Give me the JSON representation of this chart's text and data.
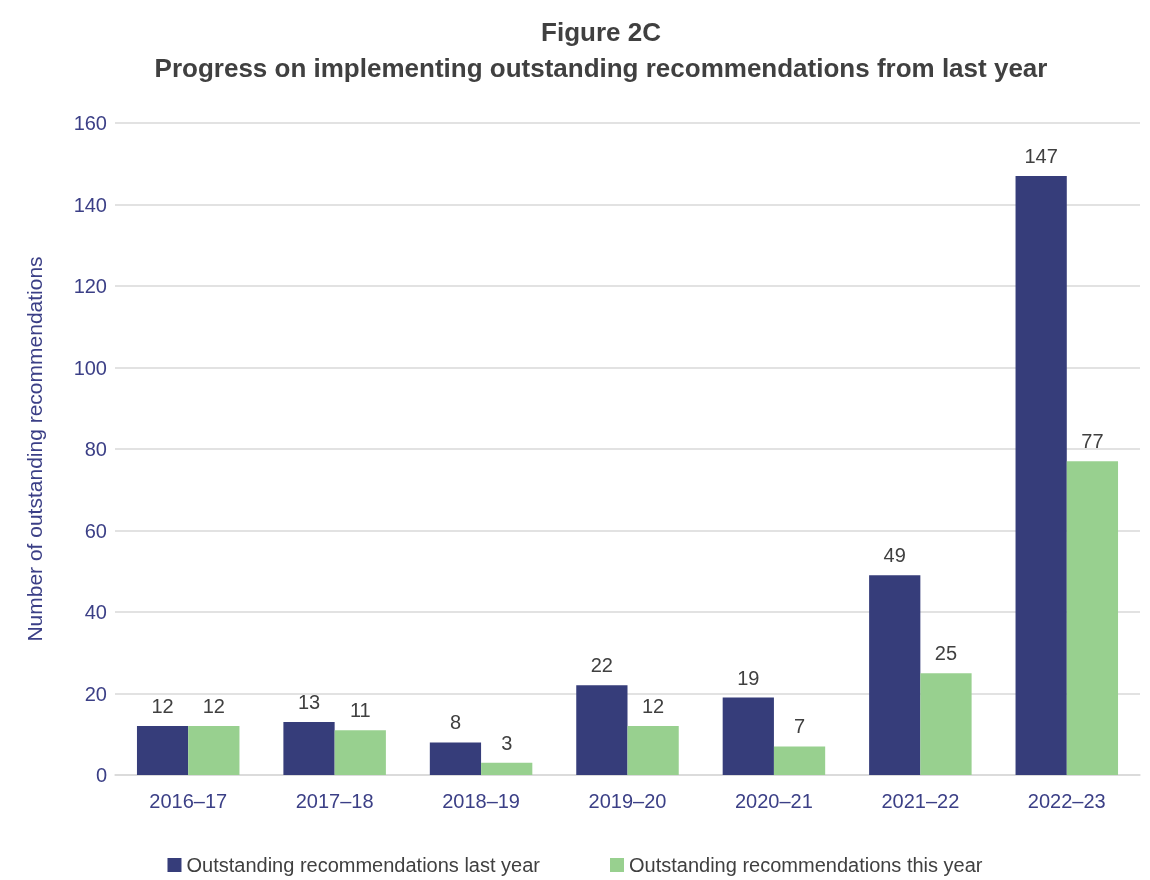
{
  "chart_data": {
    "type": "bar",
    "title": "Figure 2C",
    "subtitle": "Progress on implementing outstanding recommendations from last year",
    "ylabel": "Number of outstanding recommendations",
    "categories": [
      "2016–17",
      "2017–18",
      "2018–19",
      "2019–20",
      "2020–21",
      "2021–22",
      "2022–23"
    ],
    "series": [
      {
        "name": "Outstanding recommendations last year",
        "color": "#363d7a",
        "values": [
          12,
          13,
          8,
          22,
          19,
          49,
          147
        ]
      },
      {
        "name": "Outstanding recommendations this year",
        "color": "#98d08f",
        "values": [
          12,
          11,
          3,
          12,
          7,
          25,
          77
        ]
      }
    ],
    "ylim": [
      0,
      160
    ],
    "yticks": [
      0,
      20,
      40,
      60,
      80,
      100,
      120,
      140,
      160
    ],
    "grid": "y",
    "legend": "bottom",
    "data_labels": true
  }
}
